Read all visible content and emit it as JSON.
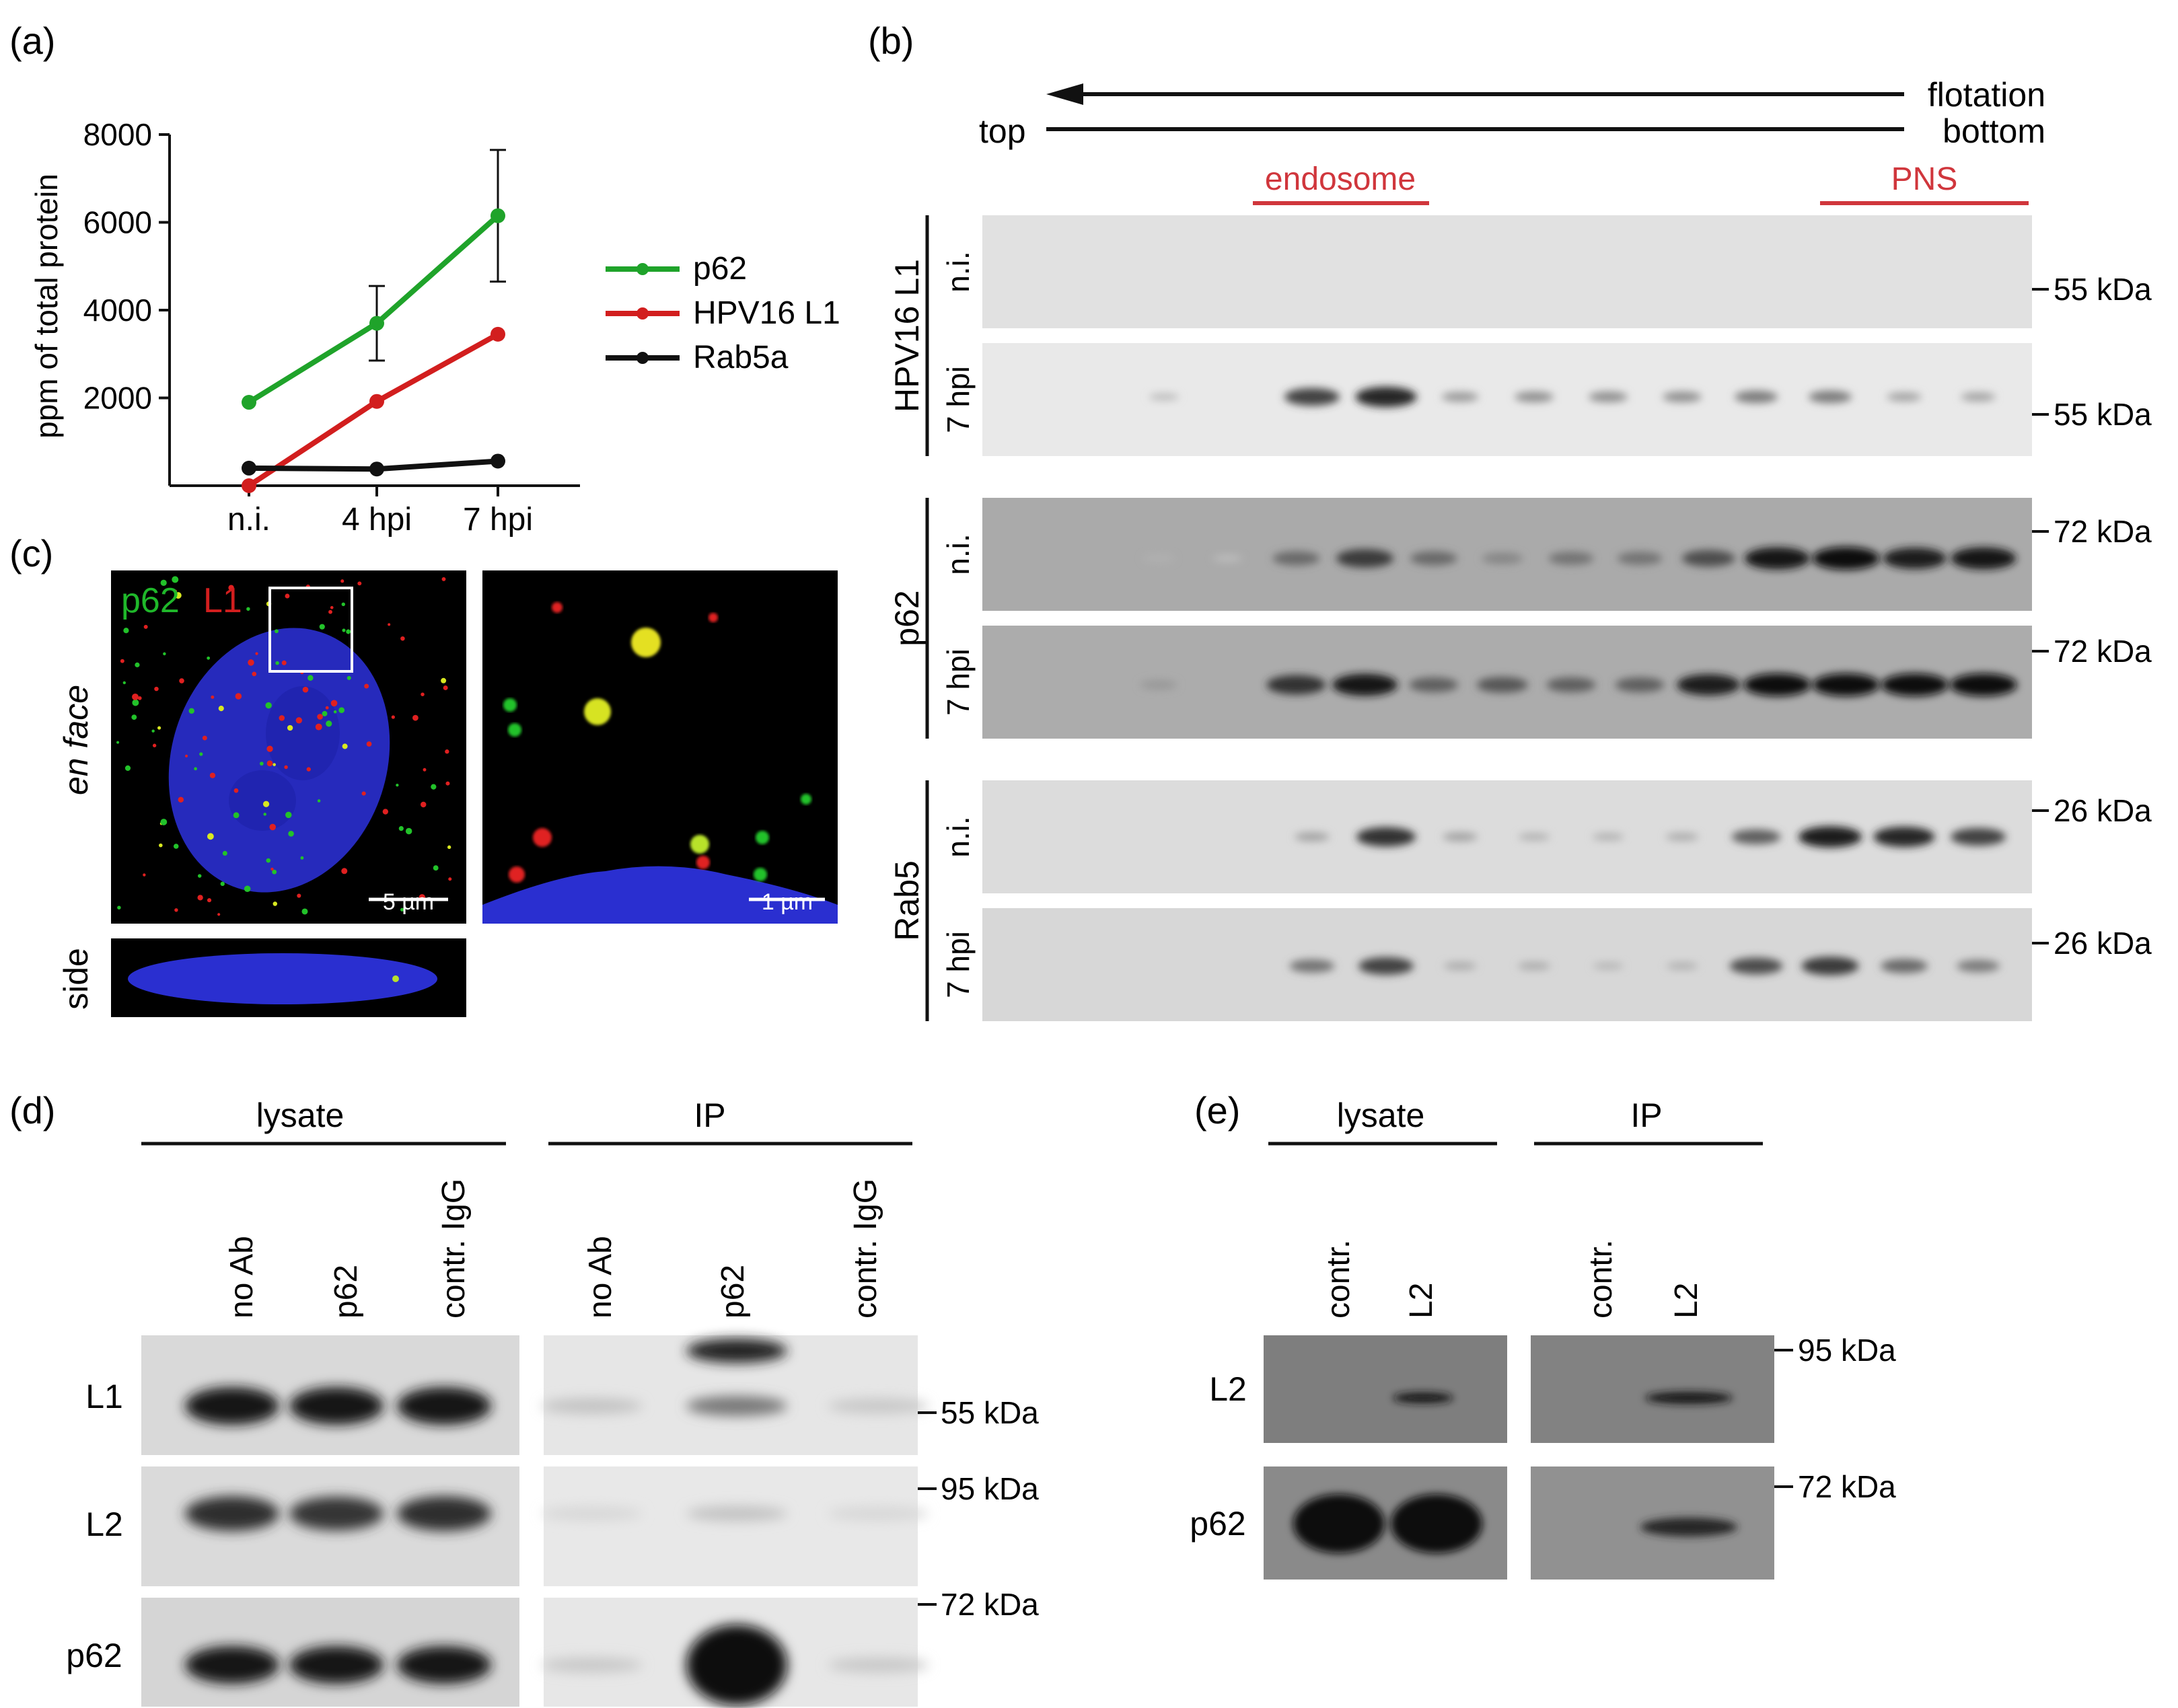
{
  "colors": {
    "green": "#1fa32a",
    "red": "#d21e1e",
    "black": "#111111",
    "endosome_red": "#d0363c",
    "nucleus_blue": "#2a2fd0"
  },
  "panels": {
    "a": "(a)",
    "b": "(b)",
    "c": "(c)",
    "d": "(d)",
    "e": "(e)"
  },
  "panel_a": {
    "ylabel": "ppm of total protein",
    "legend": [
      "p62",
      "HPV16 L1",
      "Rab5a"
    ]
  },
  "chart_data": {
    "type": "line",
    "categories": [
      "n.i.",
      "4 hpi",
      "7 hpi"
    ],
    "ylabel": "ppm of total protein",
    "xlabel": "",
    "ylim": [
      0,
      8000
    ],
    "yticks": [
      2000,
      4000,
      6000,
      8000
    ],
    "series": [
      {
        "name": "p62",
        "color": "#1fa32a",
        "values": [
          1900,
          3700,
          6150
        ],
        "errors": [
          0,
          850,
          1500
        ]
      },
      {
        "name": "HPV16 L1",
        "color": "#d21e1e",
        "values": [
          0,
          1920,
          3450
        ],
        "errors": [
          0,
          0,
          0
        ]
      },
      {
        "name": "Rab5a",
        "color": "#111111",
        "values": [
          400,
          380,
          560
        ],
        "errors": [
          0,
          0,
          0
        ]
      }
    ],
    "legend_position": "right"
  },
  "panel_b": {
    "flotation": "flotation",
    "top": "top",
    "bottom": "bottom",
    "endosome": "endosome",
    "pns": "PNS",
    "groups": [
      {
        "label": "HPV16 L1",
        "rows": [
          "n.i.",
          "7 hpi"
        ],
        "markers": [
          "55 kDa",
          "55 kDa"
        ]
      },
      {
        "label": "p62",
        "rows": [
          "n.i.",
          "7 hpi"
        ],
        "markers": [
          "72 kDa",
          "72 kDa"
        ]
      },
      {
        "label": "Rab5",
        "rows": [
          "n.i.",
          "7 hpi"
        ],
        "markers": [
          "26 kDa",
          "26 kDa"
        ]
      }
    ],
    "blots": [
      [
        0,
        0,
        0,
        0,
        0,
        0,
        0,
        0,
        0,
        0,
        0,
        0
      ],
      [
        0,
        0.08,
        0,
        0.7,
        0.85,
        0.25,
        0.3,
        0.3,
        0.3,
        0.4,
        0.4,
        0.2,
        0.2
      ],
      [
        0,
        0.12,
        0.05,
        0.5,
        0.75,
        0.5,
        0.35,
        0.45,
        0.45,
        0.65,
        0.95,
        1,
        0.9,
        0.95
      ],
      [
        0,
        0.25,
        0,
        0.8,
        0.95,
        0.55,
        0.6,
        0.55,
        0.55,
        0.9,
        1,
        1,
        1,
        1
      ],
      [
        0,
        0,
        0,
        0.2,
        0.8,
        0.2,
        0.12,
        0.12,
        0.15,
        0.55,
        0.9,
        0.85,
        0.7
      ],
      [
        0,
        0,
        0,
        0.45,
        0.7,
        0.15,
        0.15,
        0.1,
        0.12,
        0.65,
        0.75,
        0.5,
        0.4
      ]
    ]
  },
  "panel_c": {
    "p62_label": "p62",
    "l1_label": "L1",
    "en_face": "en face",
    "side": "side",
    "scale_5": "5 µm",
    "scale_1": "1 µm"
  },
  "panel_d": {
    "lysate": "lysate",
    "ip": "IP",
    "lanes": [
      "no Ab",
      "p62",
      "contr. IgG"
    ],
    "rows": [
      "L1",
      "L2",
      "p62"
    ],
    "markers": [
      "55 kDa",
      "95 kDa",
      "72 kDa"
    ]
  },
  "panel_e": {
    "lysate": "lysate",
    "ip": "IP",
    "lanes": [
      "contr.",
      "L2"
    ],
    "rows": [
      "L2",
      "p62"
    ],
    "markers": [
      "95 kDa",
      "72 kDa"
    ]
  }
}
